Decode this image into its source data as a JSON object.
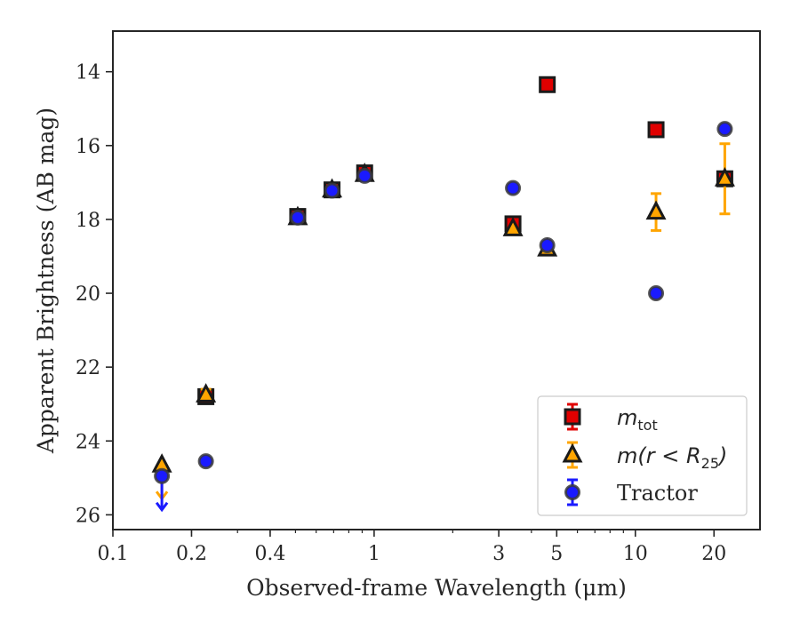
{
  "chart_data": {
    "type": "scatter",
    "title": "",
    "xlabel": "Observed-frame Wavelength (μm)",
    "ylabel": "Apparent Brightness (AB mag)",
    "x_scale": "log",
    "y_inverted": true,
    "xlim": [
      0.1,
      30
    ],
    "ylim": [
      26.4,
      12.9
    ],
    "x_ticks": [
      0.1,
      0.2,
      0.4,
      1,
      3,
      5,
      10,
      20
    ],
    "x_tick_labels": [
      "0.1",
      "0.2",
      "0.4",
      "1",
      "3",
      "5",
      "10",
      "20"
    ],
    "y_ticks": [
      14,
      16,
      18,
      20,
      22,
      24,
      26
    ],
    "y_tick_labels": [
      "14",
      "16",
      "18",
      "20",
      "22",
      "24",
      "26"
    ],
    "grid": false,
    "legend_position": "bottom-right",
    "series": [
      {
        "name": "m_tot",
        "legend_main": "m",
        "legend_sub": "tot",
        "marker": "square",
        "color": "#e00000",
        "errorbar_color": "#e00000",
        "points": [
          {
            "x": 0.227,
            "y": 22.8
          },
          {
            "x": 0.51,
            "y": 17.92
          },
          {
            "x": 0.69,
            "y": 17.2
          },
          {
            "x": 0.92,
            "y": 16.74
          },
          {
            "x": 3.4,
            "y": 18.12
          },
          {
            "x": 4.6,
            "y": 14.35
          },
          {
            "x": 12.0,
            "y": 15.57
          },
          {
            "x": 22.0,
            "y": 16.9
          }
        ]
      },
      {
        "name": "m(r < R25)",
        "legend_main": "m(r < R",
        "legend_sub": "25",
        "legend_tail": ")",
        "marker": "triangle",
        "color": "#ffa500",
        "errorbar_color": "#ffa500",
        "points": [
          {
            "x": 0.154,
            "y": 24.65,
            "upper_limit": true
          },
          {
            "x": 0.227,
            "y": 22.75,
            "err": 0.15
          },
          {
            "x": 0.51,
            "y": 17.95
          },
          {
            "x": 0.69,
            "y": 17.2
          },
          {
            "x": 0.92,
            "y": 16.78
          },
          {
            "x": 3.4,
            "y": 18.25
          },
          {
            "x": 4.6,
            "y": 18.8
          },
          {
            "x": 12.0,
            "y": 17.8,
            "err": 0.5
          },
          {
            "x": 22.0,
            "y": 16.9,
            "err": 0.95
          }
        ]
      },
      {
        "name": "Tractor",
        "legend_main": "Tractor",
        "marker": "circle",
        "color": "#1a1aff",
        "errorbar_color": "#1a1aff",
        "points": [
          {
            "x": 0.154,
            "y": 24.95,
            "upper_limit": true
          },
          {
            "x": 0.227,
            "y": 24.55
          },
          {
            "x": 0.51,
            "y": 17.95
          },
          {
            "x": 0.69,
            "y": 17.22
          },
          {
            "x": 0.92,
            "y": 16.82
          },
          {
            "x": 3.4,
            "y": 17.15
          },
          {
            "x": 4.6,
            "y": 18.7
          },
          {
            "x": 12.0,
            "y": 20.0
          },
          {
            "x": 22.0,
            "y": 15.55
          }
        ]
      }
    ]
  }
}
